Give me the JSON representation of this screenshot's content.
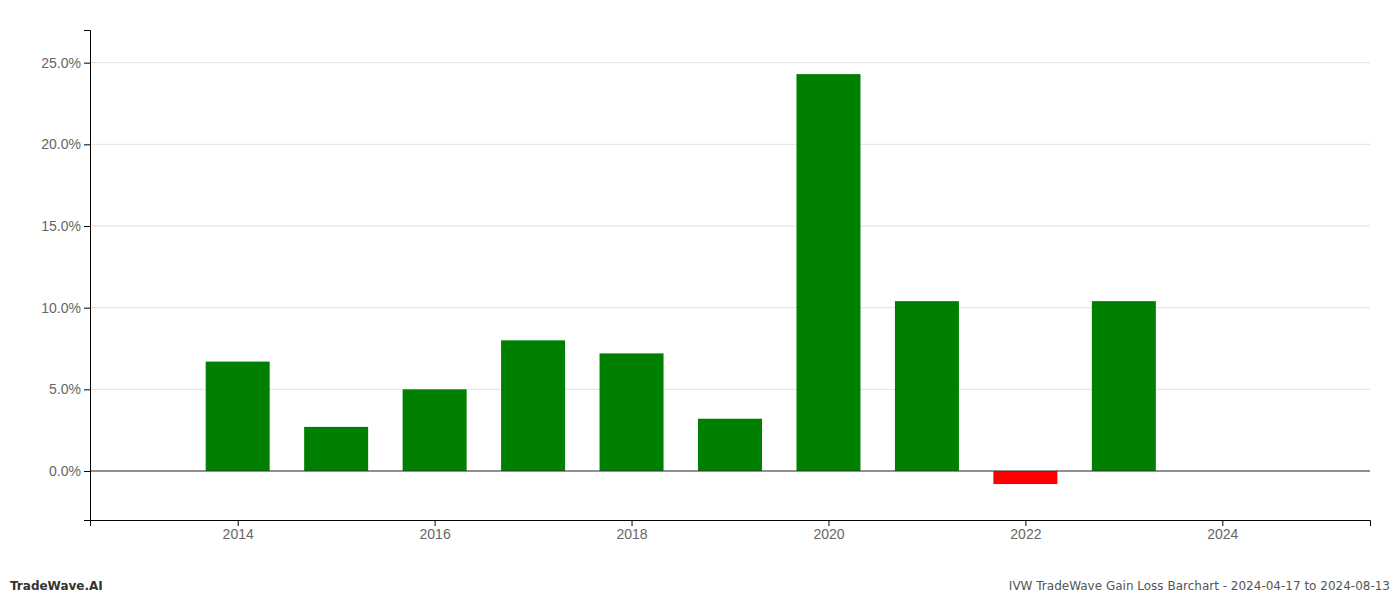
{
  "chart_data": {
    "type": "bar",
    "x": [
      2014,
      2015,
      2016,
      2017,
      2018,
      2019,
      2020,
      2021,
      2022,
      2023
    ],
    "values": [
      0.067,
      0.027,
      0.05,
      0.08,
      0.072,
      0.032,
      0.243,
      0.104,
      -0.008,
      0.104
    ],
    "colors": [
      "#008000",
      "#008000",
      "#008000",
      "#008000",
      "#008000",
      "#008000",
      "#008000",
      "#008000",
      "#ff0000",
      "#008000"
    ],
    "xlim": [
      2012.5,
      2025.5
    ],
    "xticks": [
      2014,
      2016,
      2018,
      2020,
      2022,
      2024
    ],
    "ylim": [
      -0.03,
      0.27
    ],
    "yticks": [
      {
        "value": 0.0,
        "label": "0.0%"
      },
      {
        "value": 0.05,
        "label": "5.0%"
      },
      {
        "value": 0.1,
        "label": "10.0%"
      },
      {
        "value": 0.15,
        "label": "15.0%"
      },
      {
        "value": 0.2,
        "label": "20.0%"
      },
      {
        "value": 0.25,
        "label": "25.0%"
      }
    ],
    "grid": true,
    "annotations": [
      "TradeWave.AI",
      "IVW TradeWave Gain Loss Barchart - 2024-04-17 to 2024-08-13"
    ]
  }
}
